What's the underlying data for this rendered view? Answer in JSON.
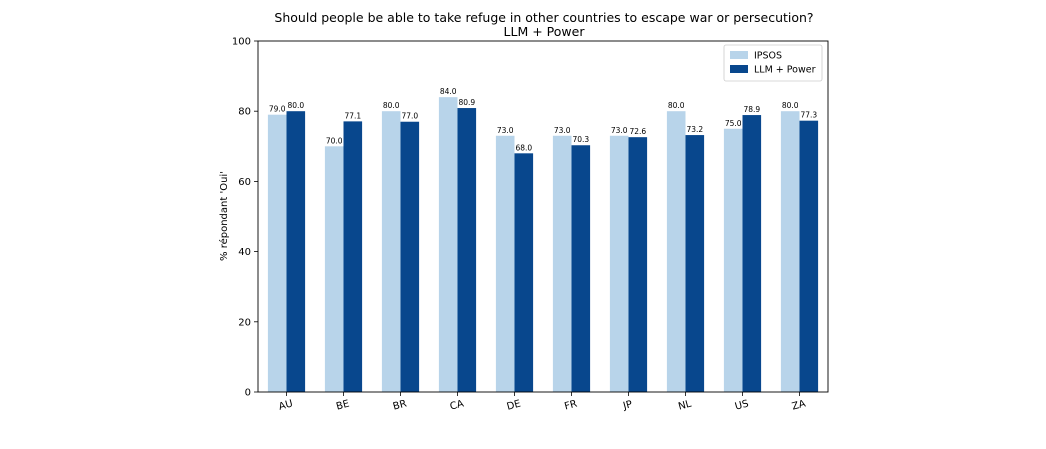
{
  "chart_data": {
    "type": "bar",
    "title": "Should people be able to take refuge in other countries to escape war or persecution?",
    "subtitle": "LLM + Power",
    "xlabel": "",
    "ylabel": "% répondant 'Oui'",
    "ylim": [
      0,
      100
    ],
    "yticks": [
      0,
      20,
      40,
      60,
      80,
      100
    ],
    "ytick_labels": [
      "0",
      "20",
      "40",
      "60",
      "80",
      "100"
    ],
    "grid": false,
    "legend_position": "top-right",
    "categories": [
      "AU",
      "BE",
      "BR",
      "CA",
      "DE",
      "FR",
      "JP",
      "NL",
      "US",
      "ZA"
    ],
    "series": [
      {
        "name": "IPSOS",
        "color": "#b8d4ea",
        "values": [
          79.0,
          70.0,
          80.0,
          84.0,
          73.0,
          73.0,
          73.0,
          80.0,
          75.0,
          80.0
        ],
        "labels": [
          "79.0",
          "70.0",
          "80.0",
          "84.0",
          "73.0",
          "73.0",
          "73.0",
          "80.0",
          "75.0",
          "80.0"
        ]
      },
      {
        "name": "LLM + Power",
        "color": "#08478d",
        "values": [
          80.0,
          77.1,
          77.0,
          80.9,
          68.0,
          70.3,
          72.6,
          73.2,
          78.9,
          77.3
        ],
        "labels": [
          "80.0",
          "77.1",
          "77.0",
          "80.9",
          "68.0",
          "70.3",
          "72.6",
          "73.2",
          "78.9",
          "77.3"
        ]
      }
    ]
  }
}
